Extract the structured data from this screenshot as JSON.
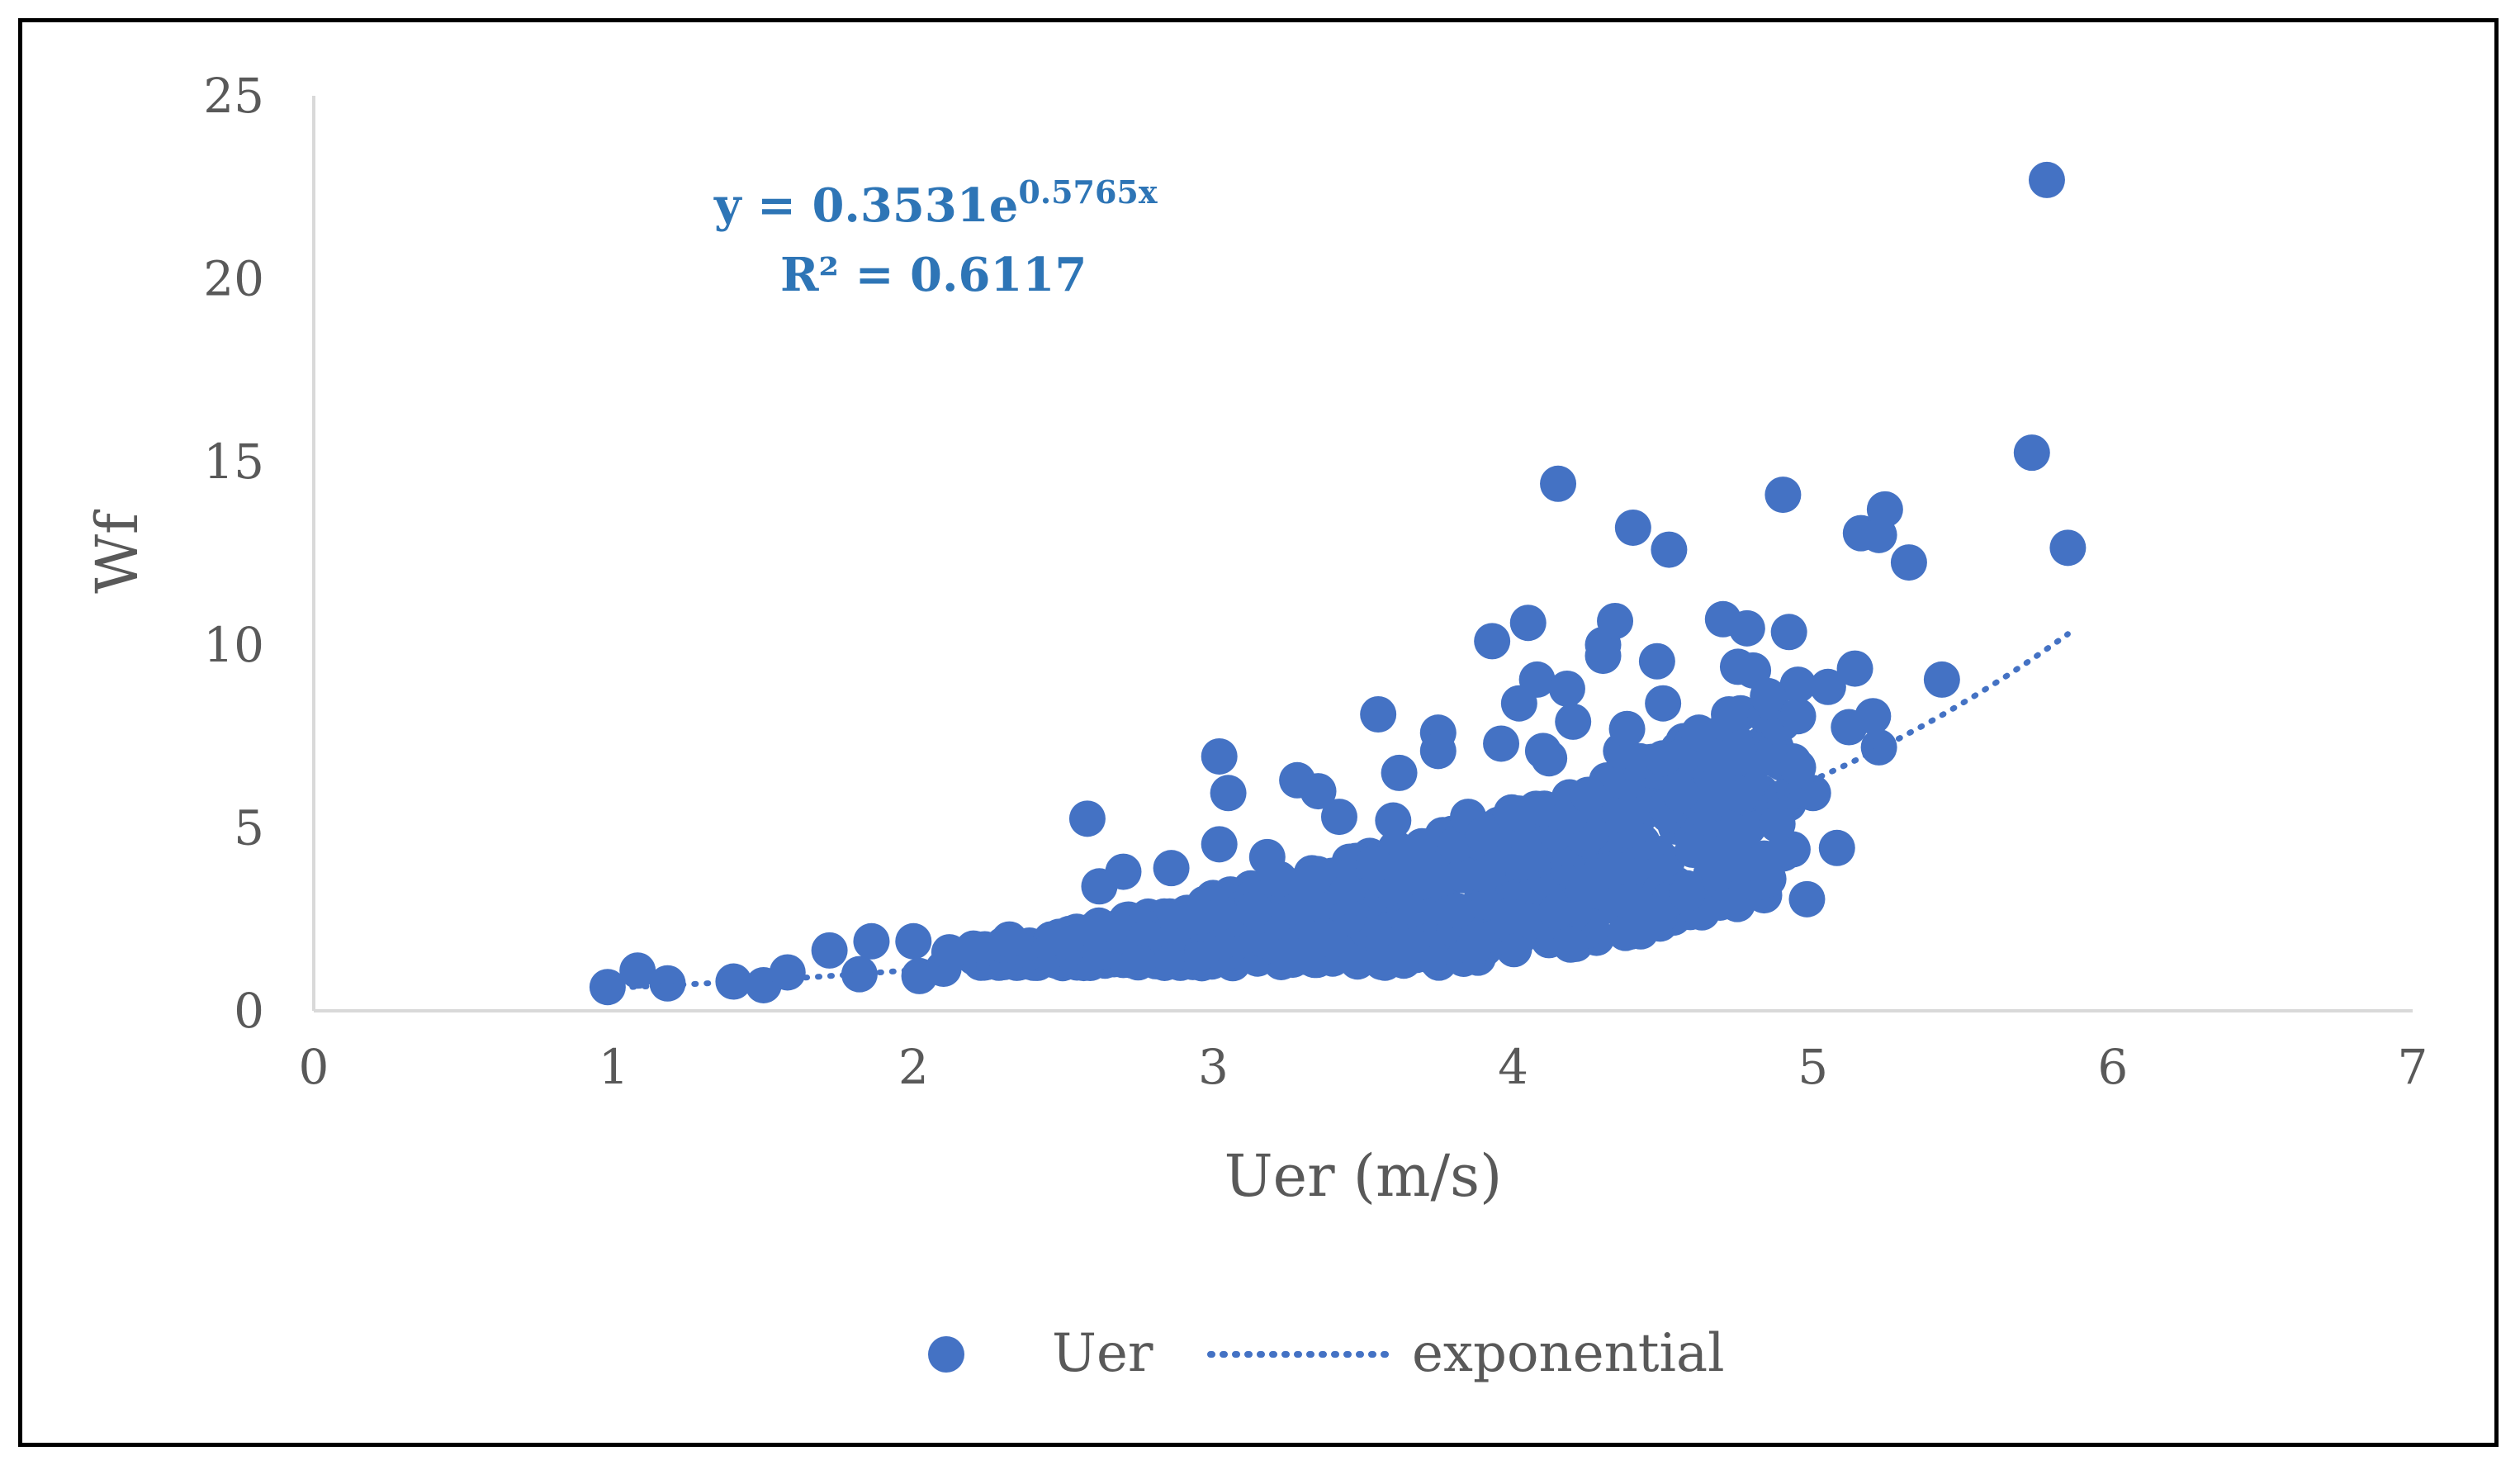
{
  "chart_data": {
    "type": "scatter",
    "xlabel": "Uer (m/s)",
    "ylabel": "Wf",
    "xlim": [
      0,
      7
    ],
    "ylim": [
      0,
      25
    ],
    "xticks": [
      0,
      1,
      2,
      3,
      4,
      5,
      6,
      7
    ],
    "yticks": [
      0,
      5,
      10,
      15,
      20,
      25
    ],
    "grid": false,
    "legend_position": "bottom",
    "series": [
      {
        "name": "Uer",
        "kind": "scatter",
        "color": "#4472C4",
        "points": [
          [
            0.98,
            0.65
          ],
          [
            1.08,
            1.1
          ],
          [
            1.18,
            0.75
          ],
          [
            1.4,
            0.8
          ],
          [
            1.5,
            0.7
          ],
          [
            1.58,
            1.05
          ],
          [
            1.72,
            1.65
          ],
          [
            1.82,
            1.0
          ],
          [
            1.86,
            1.9
          ],
          [
            2.0,
            1.9
          ],
          [
            2.02,
            0.95
          ],
          [
            2.1,
            1.15
          ],
          [
            2.12,
            1.6
          ],
          [
            2.2,
            1.7
          ],
          [
            2.3,
            1.8
          ],
          [
            2.32,
            1.95
          ],
          [
            2.45,
            1.6
          ],
          [
            2.52,
            2.1
          ],
          [
            2.58,
            5.25
          ],
          [
            2.62,
            3.4
          ],
          [
            2.7,
            3.8
          ],
          [
            2.86,
            3.9
          ],
          [
            3.02,
            6.95
          ],
          [
            3.02,
            4.55
          ],
          [
            3.05,
            5.95
          ],
          [
            3.18,
            4.2
          ],
          [
            3.22,
            3.6
          ],
          [
            3.28,
            6.3
          ],
          [
            3.35,
            6.0
          ],
          [
            3.42,
            5.3
          ],
          [
            3.55,
            8.1
          ],
          [
            3.6,
            5.2
          ],
          [
            3.62,
            6.5
          ],
          [
            3.75,
            7.6
          ],
          [
            3.75,
            7.1
          ],
          [
            3.85,
            5.3
          ],
          [
            3.9,
            4.8
          ],
          [
            3.93,
            10.1
          ],
          [
            3.96,
            7.3
          ],
          [
            4.02,
            8.4
          ],
          [
            4.05,
            10.6
          ],
          [
            4.08,
            9.05
          ],
          [
            4.1,
            7.1
          ],
          [
            4.12,
            6.9
          ],
          [
            4.15,
            14.4
          ],
          [
            4.18,
            8.8
          ],
          [
            4.2,
            7.9
          ],
          [
            4.25,
            5.9
          ],
          [
            4.3,
            9.7
          ],
          [
            4.3,
            10.0
          ],
          [
            4.34,
            10.65
          ],
          [
            4.36,
            7.1
          ],
          [
            4.38,
            7.7
          ],
          [
            4.4,
            13.2
          ],
          [
            4.48,
            9.55
          ],
          [
            4.5,
            8.4
          ],
          [
            4.5,
            6.9
          ],
          [
            4.52,
            12.6
          ],
          [
            4.58,
            3.2
          ],
          [
            4.6,
            4.4
          ],
          [
            4.62,
            7.6
          ],
          [
            4.66,
            4.3
          ],
          [
            4.7,
            10.7
          ],
          [
            4.72,
            8.1
          ],
          [
            4.75,
            9.4
          ],
          [
            4.78,
            10.45
          ],
          [
            4.8,
            9.3
          ],
          [
            4.82,
            4.0
          ],
          [
            4.85,
            8.6
          ],
          [
            4.88,
            5.1
          ],
          [
            4.9,
            14.1
          ],
          [
            4.92,
            10.35
          ],
          [
            4.95,
            8.05
          ],
          [
            4.95,
            6.65
          ],
          [
            4.98,
            3.05
          ],
          [
            5.0,
            5.95
          ],
          [
            5.05,
            8.85
          ],
          [
            5.08,
            4.45
          ],
          [
            5.12,
            7.75
          ],
          [
            5.14,
            9.35
          ],
          [
            5.16,
            13.05
          ],
          [
            5.2,
            8.05
          ],
          [
            5.22,
            7.2
          ],
          [
            5.22,
            13.0
          ],
          [
            5.24,
            13.7
          ],
          [
            5.32,
            12.25
          ],
          [
            5.43,
            9.05
          ],
          [
            5.73,
            15.25
          ],
          [
            5.78,
            22.7
          ],
          [
            5.85,
            12.65
          ]
        ]
      },
      {
        "name": "exponential",
        "kind": "trendline",
        "model": "exponential",
        "a": 0.3531,
        "b": 0.5765,
        "x_range": [
          0.98,
          5.85
        ],
        "color": "#4472C4"
      }
    ],
    "annotations": {
      "equation": {
        "prefix": "y = 0.3531e",
        "exponent": "0.5765x",
        "color": "#2E75B6"
      },
      "r_squared": {
        "text": "R² = 0.6117",
        "color": "#2E75B6"
      }
    }
  }
}
